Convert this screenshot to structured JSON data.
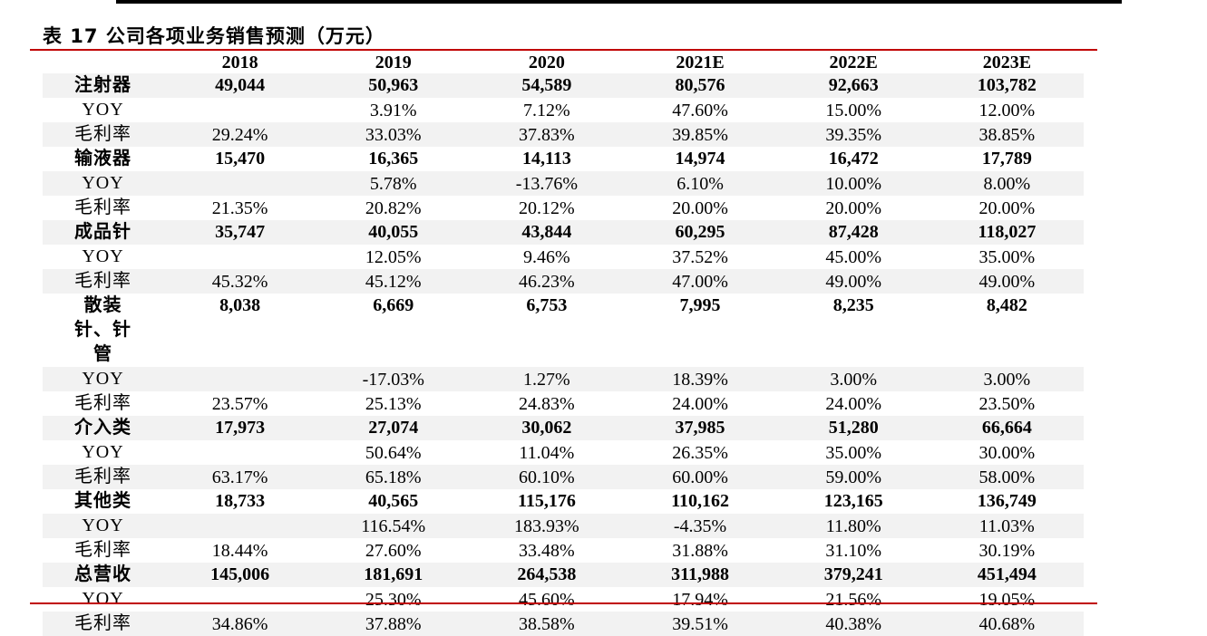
{
  "title": "表 17 公司各项业务销售预测（万元）",
  "table": {
    "header": [
      "2018",
      "2019",
      "2020",
      "2021E",
      "2022E",
      "2023E"
    ],
    "rows": [
      [
        "注射器",
        "49,044",
        "50,963",
        "54,589",
        "80,576",
        "92,663",
        "103,782"
      ],
      [
        "YOY",
        null,
        "3.91%",
        "7.12%",
        "47.60%",
        "15.00%",
        "12.00%"
      ],
      [
        "毛利率",
        "29.24%",
        "33.03%",
        "37.83%",
        "39.85%",
        "39.35%",
        "38.85%"
      ],
      [
        "输液器",
        "15,470",
        "16,365",
        "14,113",
        "14,974",
        "16,472",
        "17,789"
      ],
      [
        "YOY",
        null,
        "5.78%",
        "-13.76%",
        "6.10%",
        "10.00%",
        "8.00%"
      ],
      [
        "毛利率",
        "21.35%",
        "20.82%",
        "20.12%",
        "20.00%",
        "20.00%",
        "20.00%"
      ],
      [
        "成品针",
        "35,747",
        "40,055",
        "43,844",
        "60,295",
        "87,428",
        "118,027"
      ],
      [
        "YOY",
        null,
        "12.05%",
        "9.46%",
        "37.52%",
        "45.00%",
        "35.00%"
      ],
      [
        "毛利率",
        "45.32%",
        "45.12%",
        "46.23%",
        "47.00%",
        "49.00%",
        "49.00%"
      ],
      [
        "散装针、针管",
        "8,038",
        "6,669",
        "6,753",
        "7,995",
        "8,235",
        "8,482"
      ],
      [
        "YOY",
        null,
        "-17.03%",
        "1.27%",
        "18.39%",
        "3.00%",
        "3.00%"
      ],
      [
        "毛利率",
        "23.57%",
        "25.13%",
        "24.83%",
        "24.00%",
        "24.00%",
        "23.50%"
      ],
      [
        "介入类",
        "17,973",
        "27,074",
        "30,062",
        "37,985",
        "51,280",
        "66,664"
      ],
      [
        "YOY",
        null,
        "50.64%",
        "11.04%",
        "26.35%",
        "35.00%",
        "30.00%"
      ],
      [
        "毛利率",
        "63.17%",
        "65.18%",
        "60.10%",
        "60.00%",
        "59.00%",
        "58.00%"
      ],
      [
        "其他类",
        "18,733",
        "40,565",
        "115,176",
        "110,162",
        "123,165",
        "136,749"
      ],
      [
        "YOY",
        null,
        "116.54%",
        "183.93%",
        "-4.35%",
        "11.80%",
        "11.03%"
      ],
      [
        "毛利率",
        "18.44%",
        "27.60%",
        "33.48%",
        "31.88%",
        "31.10%",
        "30.19%"
      ],
      [
        "总营收",
        "145,006",
        "181,691",
        "264,538",
        "311,988",
        "379,241",
        "451,494"
      ],
      [
        "YOY",
        null,
        "25.30%",
        "45.60%",
        "17.94%",
        "21.56%",
        "19.05%"
      ],
      [
        "毛利率",
        "34.86%",
        "37.88%",
        "38.58%",
        "39.51%",
        "40.38%",
        "40.68%"
      ]
    ]
  }
}
